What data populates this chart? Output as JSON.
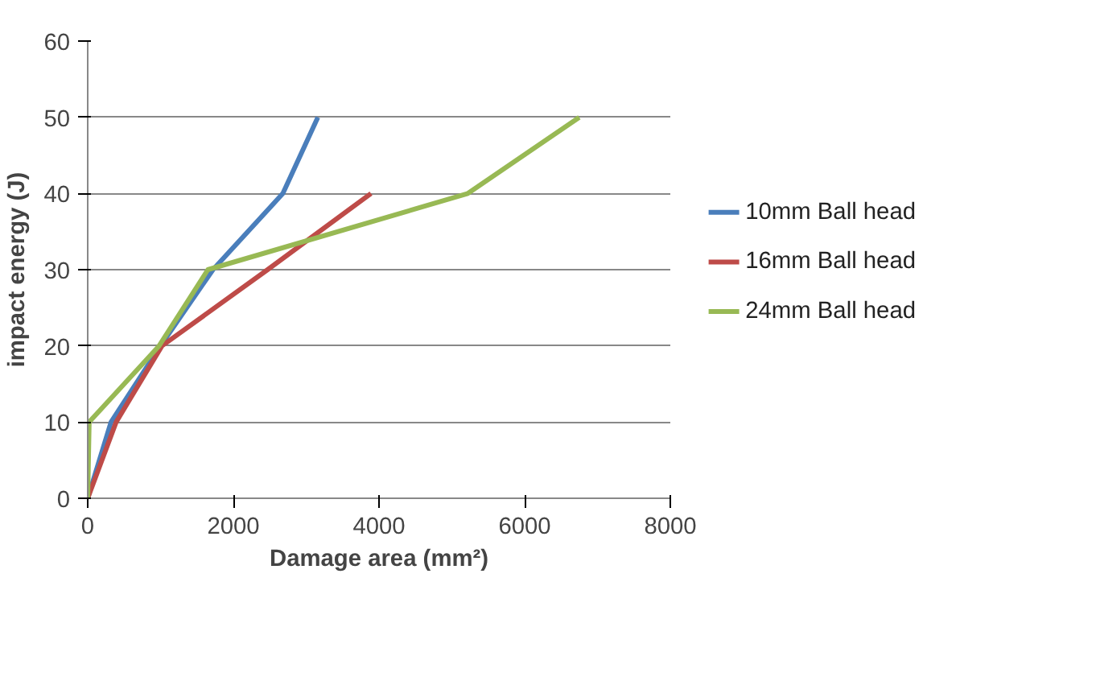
{
  "chart_data": {
    "type": "line",
    "xlabel": "Damage area (mm²)",
    "ylabel": "impact energy (J)",
    "xlim": [
      0,
      8000
    ],
    "xticks": [
      0,
      2000,
      4000,
      6000,
      8000
    ],
    "ylim": [
      0,
      60
    ],
    "yticks": [
      0,
      10,
      20,
      30,
      40,
      50,
      60
    ],
    "grid": "y",
    "legend": "right",
    "marker": "none",
    "series": [
      {
        "name": "10mm Ball head",
        "color": "#4a7ebb",
        "x": [
          0,
          320,
          1000,
          1720,
          2680,
          3160
        ],
        "values": [
          0,
          10,
          20,
          30,
          40,
          50
        ]
      },
      {
        "name": "16mm Ball head",
        "color": "#be4b48",
        "x": [
          0,
          390,
          1020,
          2470,
          3890
        ],
        "values": [
          0,
          10,
          20,
          30,
          40
        ]
      },
      {
        "name": "24mm Ball head",
        "color": "#98b954",
        "x": [
          0,
          20,
          980,
          1650,
          5220,
          6750
        ],
        "values": [
          0,
          10,
          20,
          30,
          40,
          50
        ]
      }
    ]
  }
}
